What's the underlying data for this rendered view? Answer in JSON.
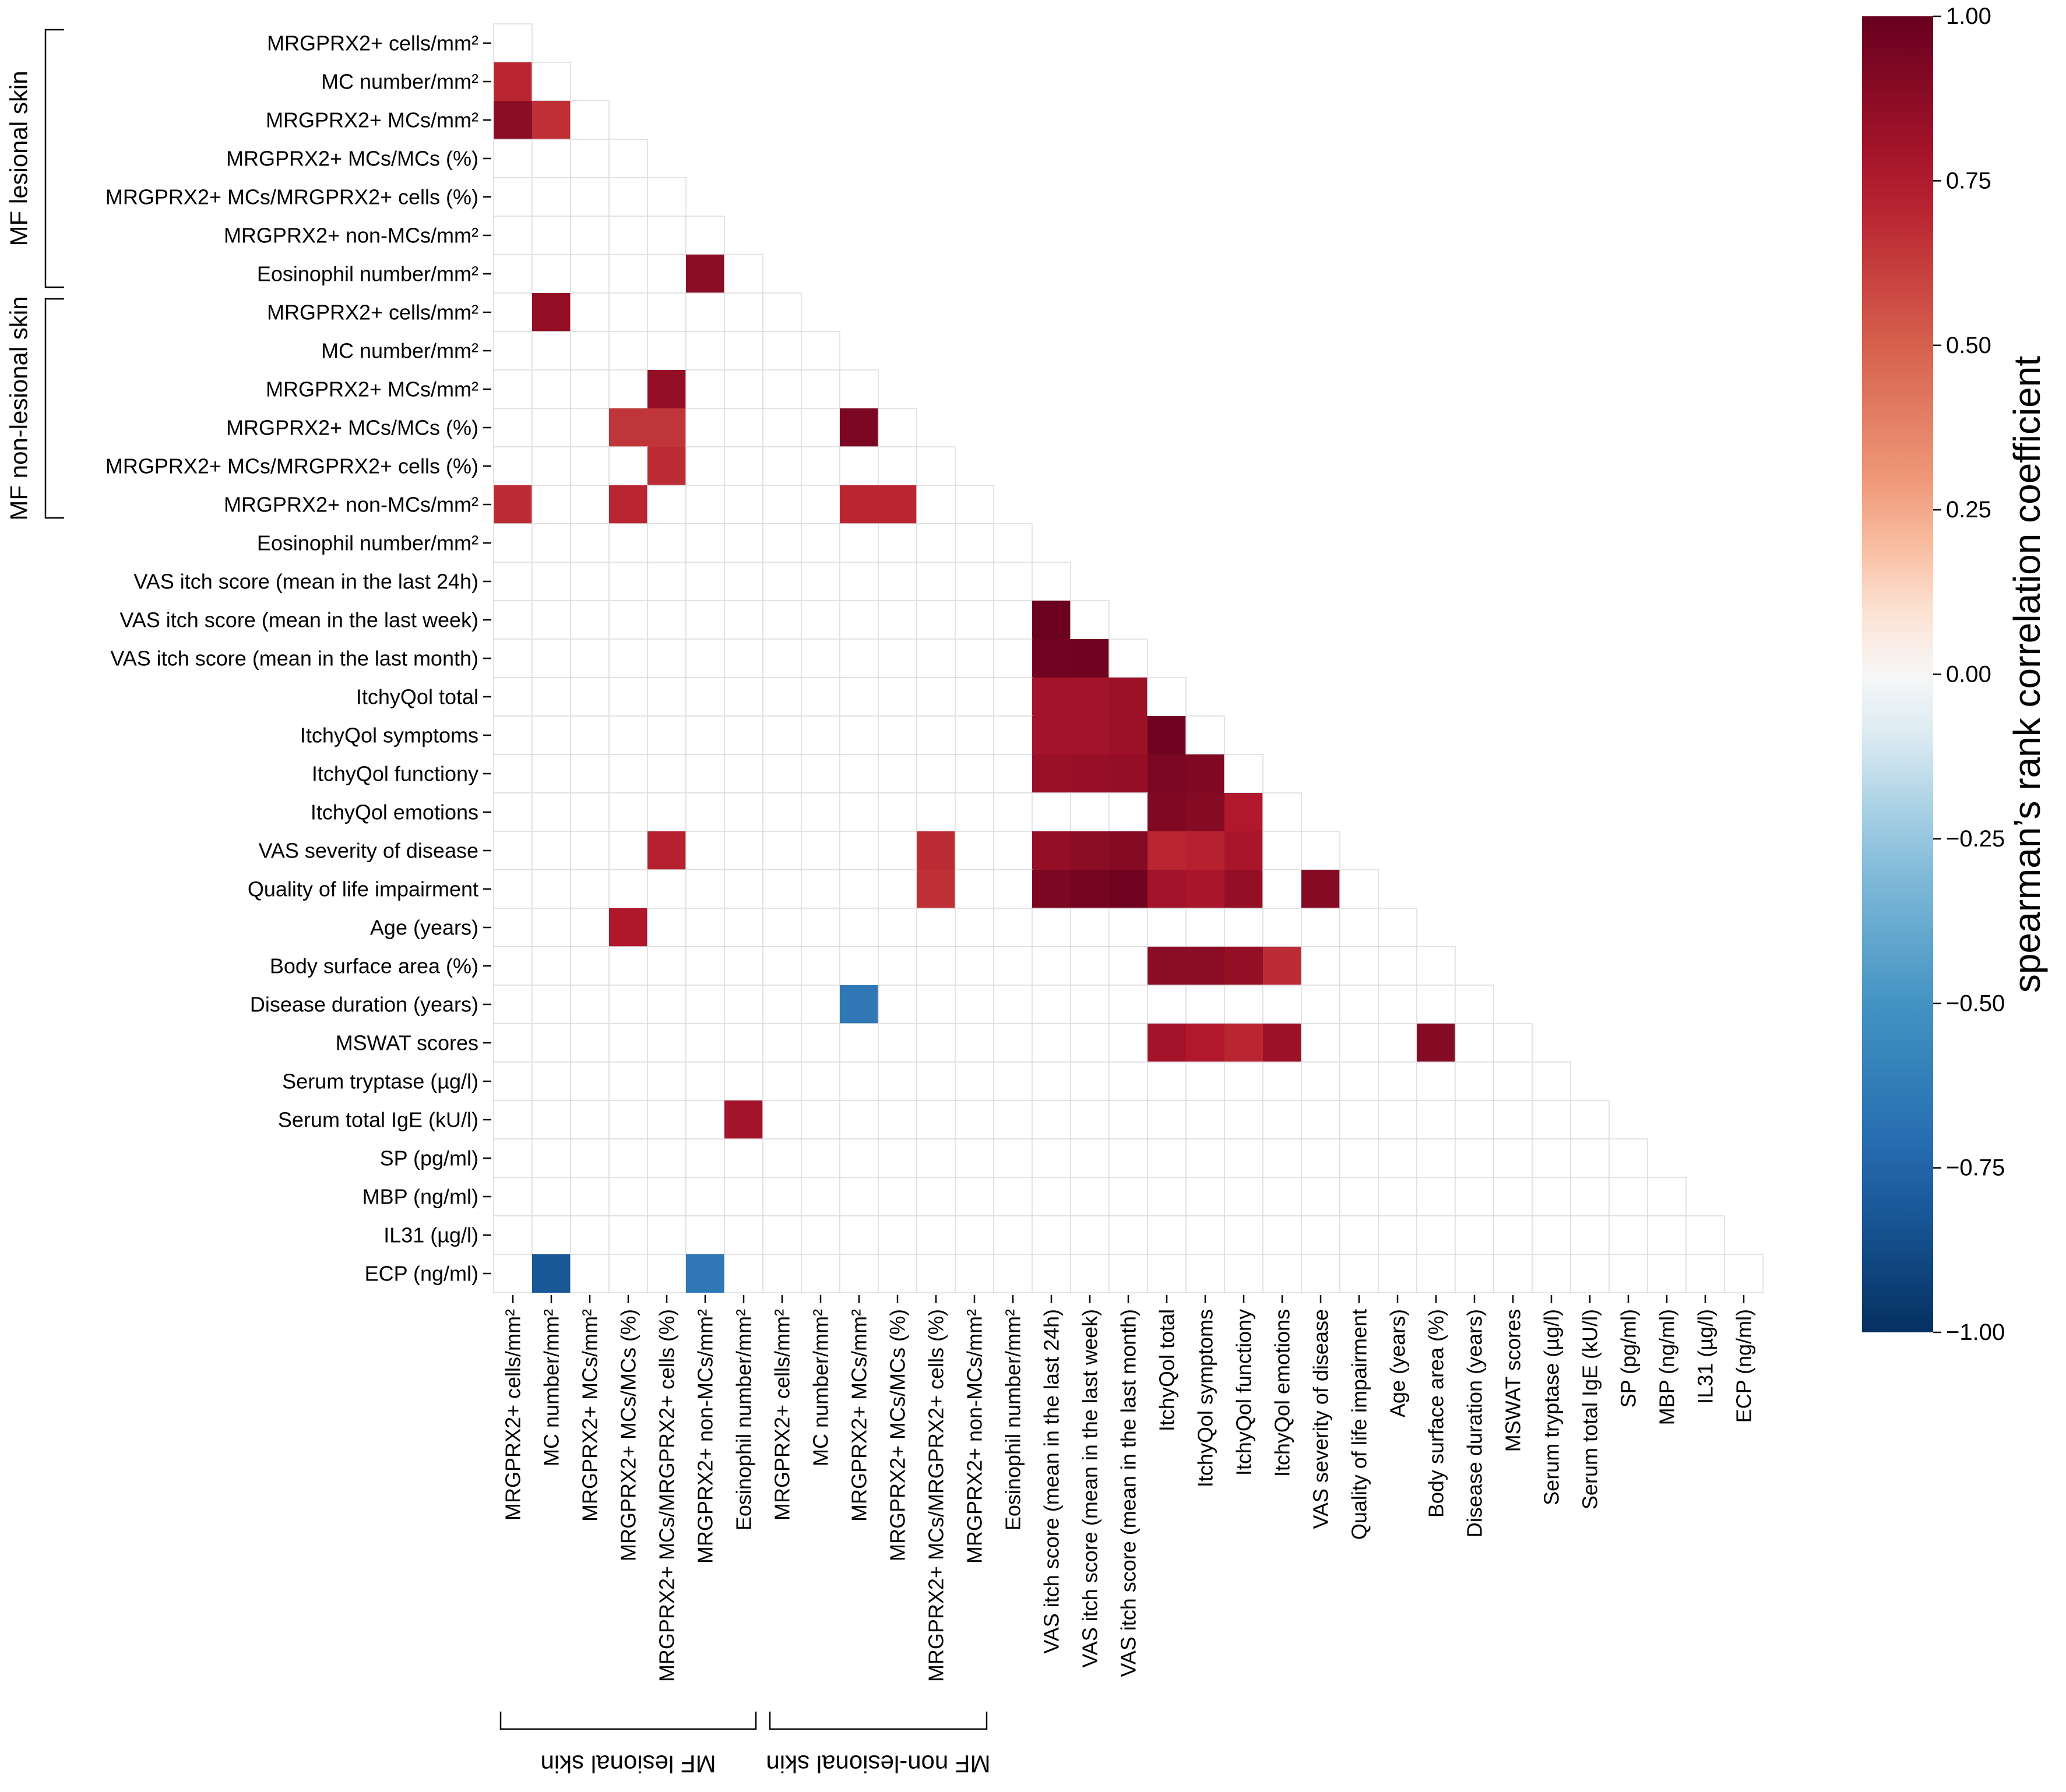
{
  "chart_data": {
    "type": "heatmap",
    "layout": "lower-triangle",
    "variables": [
      "MRGPRX2+ cells/mm²",
      "MC number/mm²",
      "MRGPRX2+ MCs/mm²",
      "MRGPRX2+ MCs/MCs (%)",
      "MRGPRX2+ MCs/MRGPRX2+ cells (%)",
      "MRGPRX2+ non-MCs/mm²",
      "Eosinophil number/mm²",
      "MRGPRX2+ cells/mm²",
      "MC number/mm²",
      "MRGPRX2+ MCs/mm²",
      "MRGPRX2+ MCs/MCs (%)",
      "MRGPRX2+ MCs/MRGPRX2+ cells (%)",
      "MRGPRX2+ non-MCs/mm²",
      "Eosinophil number/mm²",
      "VAS itch score (mean in the last 24h)",
      "VAS itch score (mean in the last week)",
      "VAS itch score (mean in the last month)",
      "ItchyQol total",
      "ItchyQol symptoms",
      "ItchyQol functiony",
      "ItchyQol emotions",
      "VAS severity of disease",
      "Quality of life impairment",
      "Age (years)",
      "Body surface area (%)",
      "Disease duration (years)",
      "MSWAT scores",
      "Serum tryptase (µg/l)",
      "Serum total IgE (kU/l)",
      "SP (pg/ml)",
      "MBP (ng/ml)",
      "IL31 (µg/l)",
      "ECP (ng/ml)"
    ],
    "groups": [
      {
        "label": "MF lesional skin",
        "start": 0,
        "end": 6
      },
      {
        "label": "MF non-lesional skin",
        "start": 7,
        "end": 12
      }
    ],
    "significant_cells": [
      {
        "row": 1,
        "col": 0,
        "value": 0.7
      },
      {
        "row": 2,
        "col": 0,
        "value": 0.88
      },
      {
        "row": 2,
        "col": 1,
        "value": 0.67
      },
      {
        "row": 6,
        "col": 5,
        "value": 0.88
      },
      {
        "row": 7,
        "col": 1,
        "value": 0.85
      },
      {
        "row": 9,
        "col": 4,
        "value": 0.85
      },
      {
        "row": 10,
        "col": 3,
        "value": 0.65
      },
      {
        "row": 10,
        "col": 4,
        "value": 0.65
      },
      {
        "row": 10,
        "col": 9,
        "value": 0.93
      },
      {
        "row": 11,
        "col": 4,
        "value": 0.68
      },
      {
        "row": 12,
        "col": 0,
        "value": 0.68
      },
      {
        "row": 12,
        "col": 3,
        "value": 0.7
      },
      {
        "row": 12,
        "col": 9,
        "value": 0.7
      },
      {
        "row": 12,
        "col": 10,
        "value": 0.7
      },
      {
        "row": 15,
        "col": 14,
        "value": 0.98
      },
      {
        "row": 16,
        "col": 14,
        "value": 0.96
      },
      {
        "row": 16,
        "col": 15,
        "value": 0.97
      },
      {
        "row": 17,
        "col": 14,
        "value": 0.8
      },
      {
        "row": 17,
        "col": 15,
        "value": 0.8
      },
      {
        "row": 17,
        "col": 16,
        "value": 0.82
      },
      {
        "row": 18,
        "col": 14,
        "value": 0.8
      },
      {
        "row": 18,
        "col": 15,
        "value": 0.8
      },
      {
        "row": 18,
        "col": 16,
        "value": 0.82
      },
      {
        "row": 18,
        "col": 17,
        "value": 0.97
      },
      {
        "row": 19,
        "col": 14,
        "value": 0.83
      },
      {
        "row": 19,
        "col": 15,
        "value": 0.84
      },
      {
        "row": 19,
        "col": 16,
        "value": 0.85
      },
      {
        "row": 19,
        "col": 17,
        "value": 0.93
      },
      {
        "row": 19,
        "col": 18,
        "value": 0.92
      },
      {
        "row": 20,
        "col": 17,
        "value": 0.92
      },
      {
        "row": 20,
        "col": 18,
        "value": 0.9
      },
      {
        "row": 20,
        "col": 19,
        "value": 0.75
      },
      {
        "row": 21,
        "col": 4,
        "value": 0.72
      },
      {
        "row": 21,
        "col": 11,
        "value": 0.68
      },
      {
        "row": 21,
        "col": 14,
        "value": 0.85
      },
      {
        "row": 21,
        "col": 15,
        "value": 0.88
      },
      {
        "row": 21,
        "col": 16,
        "value": 0.9
      },
      {
        "row": 21,
        "col": 17,
        "value": 0.7
      },
      {
        "row": 21,
        "col": 18,
        "value": 0.72
      },
      {
        "row": 21,
        "col": 19,
        "value": 0.78
      },
      {
        "row": 22,
        "col": 11,
        "value": 0.67
      },
      {
        "row": 22,
        "col": 14,
        "value": 0.93
      },
      {
        "row": 22,
        "col": 15,
        "value": 0.95
      },
      {
        "row": 22,
        "col": 16,
        "value": 0.97
      },
      {
        "row": 22,
        "col": 17,
        "value": 0.8
      },
      {
        "row": 22,
        "col": 18,
        "value": 0.78
      },
      {
        "row": 22,
        "col": 19,
        "value": 0.85
      },
      {
        "row": 22,
        "col": 21,
        "value": 0.9
      },
      {
        "row": 23,
        "col": 3,
        "value": 0.76
      },
      {
        "row": 24,
        "col": 17,
        "value": 0.88
      },
      {
        "row": 24,
        "col": 18,
        "value": 0.88
      },
      {
        "row": 24,
        "col": 19,
        "value": 0.85
      },
      {
        "row": 24,
        "col": 20,
        "value": 0.68
      },
      {
        "row": 25,
        "col": 9,
        "value": -0.65
      },
      {
        "row": 26,
        "col": 17,
        "value": 0.8
      },
      {
        "row": 26,
        "col": 18,
        "value": 0.75
      },
      {
        "row": 26,
        "col": 19,
        "value": 0.7
      },
      {
        "row": 26,
        "col": 20,
        "value": 0.82
      },
      {
        "row": 26,
        "col": 24,
        "value": 0.9
      },
      {
        "row": 28,
        "col": 6,
        "value": 0.8
      },
      {
        "row": 32,
        "col": 1,
        "value": -0.82
      },
      {
        "row": 32,
        "col": 5,
        "value": -0.65
      }
    ],
    "colorbar": {
      "label": "spearman’s rank correlation coefficient",
      "min": -1.0,
      "max": 1.0,
      "ticks": [
        1.0,
        0.75,
        0.5,
        0.25,
        0.0,
        -0.25,
        -0.5,
        -0.75,
        -1.0
      ],
      "tick_labels": [
        "1.00",
        "0.75",
        "0.50",
        "0.25",
        "0.00",
        "−0.25",
        "−0.50",
        "−0.75",
        "−1.00"
      ],
      "colormap": "RdBu_r"
    }
  }
}
